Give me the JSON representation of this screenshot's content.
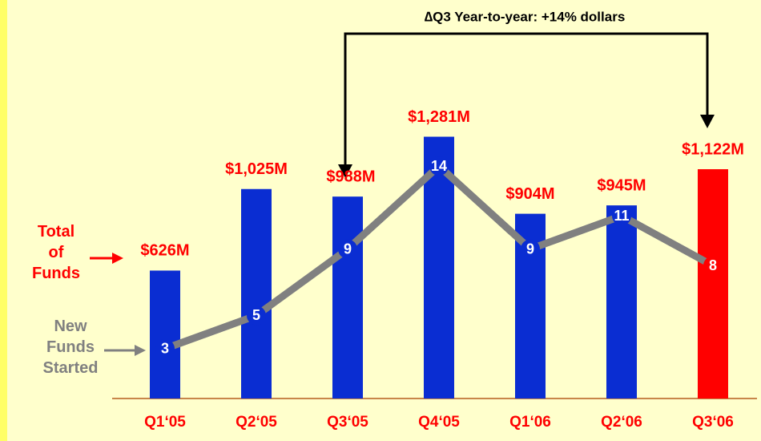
{
  "chart_data": {
    "type": "bar",
    "annotation": "∆Q3 Year-to-year: +14% dollars",
    "categories": [
      "Q1‘05",
      "Q2‘05",
      "Q3‘05",
      "Q4‘05",
      "Q1‘06",
      "Q2‘06",
      "Q3‘06"
    ],
    "series": [
      {
        "name": "Total of Funds",
        "type": "bar",
        "color": "#0a2dd2",
        "colors": [
          "#0a2dd2",
          "#0a2dd2",
          "#0a2dd2",
          "#0a2dd2",
          "#0a2dd2",
          "#0a2dd2",
          "#ff0000"
        ],
        "values": [
          626,
          1025,
          988,
          1281,
          904,
          945,
          1122
        ],
        "value_labels": [
          "$626M",
          "$1,025M",
          "$988M",
          "$1,281M",
          "$904M",
          "$945M",
          "$1,122M"
        ]
      },
      {
        "name": "New Funds Started",
        "type": "line",
        "axis": "y2",
        "color": "#808080",
        "values": [
          3,
          5,
          9,
          14,
          9,
          11,
          8
        ]
      }
    ],
    "ylim": [
      0,
      1950
    ],
    "y2lim": [
      0,
      24
    ]
  }
}
